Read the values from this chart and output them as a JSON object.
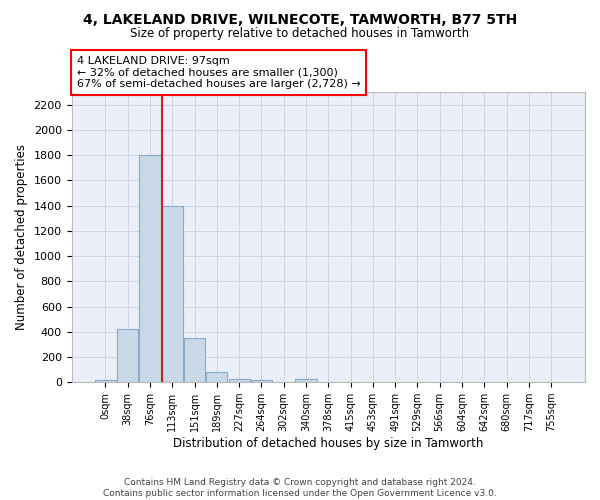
{
  "title": "4, LAKELAND DRIVE, WILNECOTE, TAMWORTH, B77 5TH",
  "subtitle": "Size of property relative to detached houses in Tamworth",
  "xlabel": "Distribution of detached houses by size in Tamworth",
  "ylabel": "Number of detached properties",
  "footer_line1": "Contains HM Land Registry data © Crown copyright and database right 2024.",
  "footer_line2": "Contains public sector information licensed under the Open Government Licence v3.0.",
  "bin_labels": [
    "0sqm",
    "38sqm",
    "76sqm",
    "113sqm",
    "151sqm",
    "189sqm",
    "227sqm",
    "264sqm",
    "302sqm",
    "340sqm",
    "378sqm",
    "415sqm",
    "453sqm",
    "491sqm",
    "529sqm",
    "566sqm",
    "604sqm",
    "642sqm",
    "680sqm",
    "717sqm",
    "755sqm"
  ],
  "bar_values": [
    15,
    420,
    1800,
    1400,
    350,
    80,
    25,
    15,
    0,
    25,
    0,
    0,
    0,
    0,
    0,
    0,
    0,
    0,
    0,
    0,
    0
  ],
  "bar_color": "#c9d9e8",
  "bar_edgecolor": "#88aacc",
  "grid_color": "#ccd6e8",
  "bg_color": "#eaeff8",
  "vline_x": 2.54,
  "vline_color": "#cc2222",
  "annotation_line1": "4 LAKELAND DRIVE: 97sqm",
  "annotation_line2": "← 32% of detached houses are smaller (1,300)",
  "annotation_line3": "67% of semi-detached houses are larger (2,728) →",
  "ylim": [
    0,
    2300
  ],
  "yticks": [
    0,
    200,
    400,
    600,
    800,
    1000,
    1200,
    1400,
    1600,
    1800,
    2000,
    2200
  ]
}
